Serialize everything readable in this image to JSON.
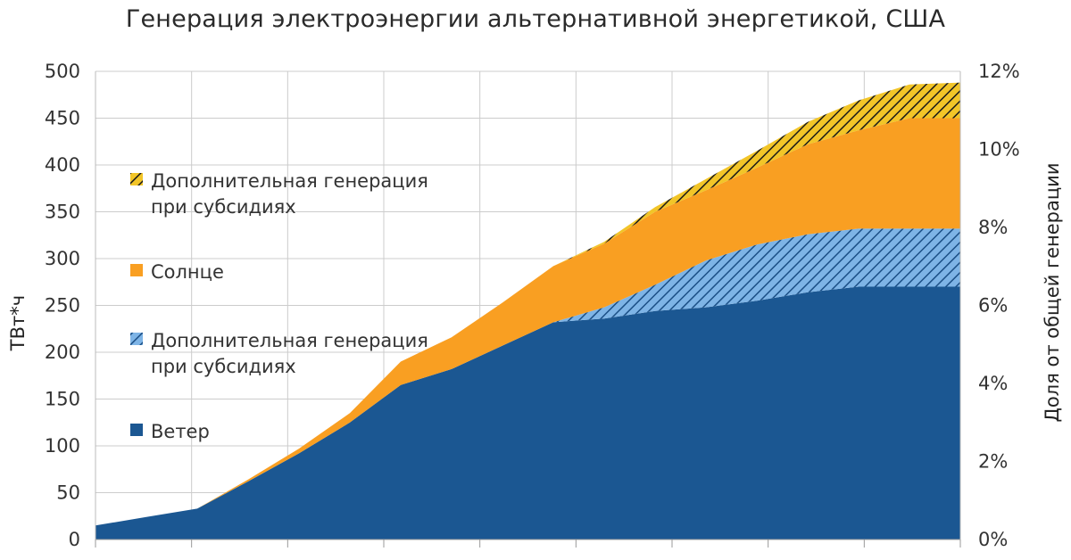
{
  "chart_data": {
    "type": "area",
    "title": "Генерация электроэнергии альтернативной энергетикой, США",
    "ylabel": "ТВт*ч",
    "y2label": "Доля от общей генерации",
    "ylim": [
      0,
      500
    ],
    "y2lim": [
      0,
      12
    ],
    "yticks": [
      "0",
      "50",
      "100",
      "150",
      "200",
      "250",
      "300",
      "350",
      "400",
      "450",
      "500"
    ],
    "y2ticks": [
      "0%",
      "2%",
      "4%",
      "6%",
      "8%",
      "10%",
      "12%"
    ],
    "x": [
      0,
      1,
      2,
      3,
      4,
      5,
      6,
      7,
      8,
      9,
      10,
      11,
      12,
      13,
      14,
      15,
      16,
      17
    ],
    "grid": true,
    "legend_position": "left",
    "colors": {
      "wind": "#1b5792",
      "wind_subsidy_hatch": "#7eb4e6",
      "solar": "#f99f22",
      "solar_subsidy_hatch": "#f2c528",
      "grid": "#cccccc"
    },
    "series": [
      {
        "key": "wind",
        "name": "Ветер",
        "style": "solid",
        "values": [
          15,
          24,
          33,
          62,
          92,
          125,
          165,
          182,
          207,
          232,
          236,
          244,
          248,
          255,
          264,
          270,
          270,
          270
        ]
      },
      {
        "key": "wind_subsidy",
        "name": "Дополнительная генерация при субсидиях",
        "style": "hatch",
        "values": [
          0,
          0,
          0,
          0,
          0,
          0,
          0,
          0,
          0,
          0,
          12,
          28,
          50,
          60,
          62,
          62,
          62,
          62
        ]
      },
      {
        "key": "solar",
        "name": "Солнце",
        "style": "solid",
        "values": [
          0,
          0,
          0,
          2,
          5,
          10,
          25,
          34,
          46,
          60,
          68,
          78,
          75,
          82,
          96,
          105,
          118,
          118
        ]
      },
      {
        "key": "solar_subsidy",
        "name": "Дополнительная генерация при субсидиях",
        "style": "hatch",
        "values": [
          0,
          0,
          0,
          0,
          0,
          0,
          0,
          0,
          0,
          0,
          2,
          5,
          12,
          18,
          24,
          32,
          36,
          38
        ]
      }
    ],
    "legend": [
      {
        "key": "solar_subsidy",
        "lines": [
          "Дополнительная генерация",
          "при субсидиях"
        ]
      },
      {
        "key": "solar",
        "lines": [
          "Солнце"
        ]
      },
      {
        "key": "wind_subsidy",
        "lines": [
          "Дополнительная генерация",
          "при субсидиях"
        ]
      },
      {
        "key": "wind",
        "lines": [
          "Ветер"
        ]
      }
    ]
  }
}
